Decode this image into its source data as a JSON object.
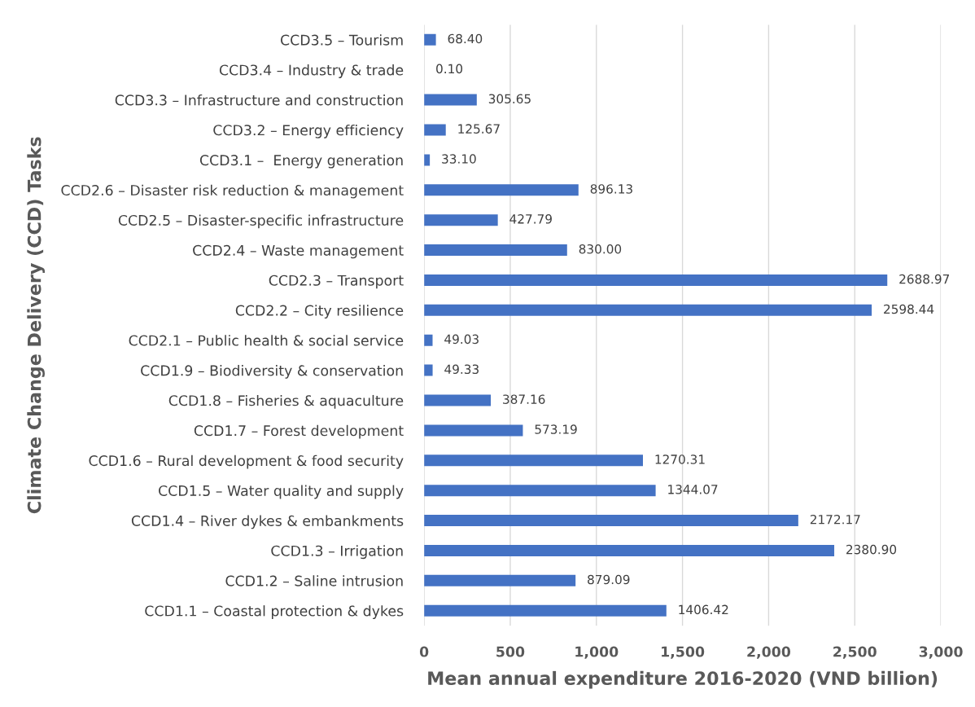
{
  "chart_data": {
    "type": "bar",
    "orientation": "horizontal",
    "xlabel": "Mean annual expenditure 2016-2020 (VND billion)",
    "ylabel": "Climate Change Delivery (CCD) Tasks",
    "categories": [
      "CCD3.5 – Tourism",
      "CCD3.4 – Industry & trade",
      "CCD3.3 – Infrastructure and construction",
      "CCD3.2 – Energy efficiency",
      "CCD3.1 –  Energy generation",
      "CCD2.6 – Disaster risk reduction & management",
      "CCD2.5 – Disaster-specific infrastructure",
      "CCD2.4 – Waste management",
      "CCD2.3 – Transport",
      "CCD2.2 – City resilience",
      "CCD2.1 – Public health & social service",
      "CCD1.9 – Biodiversity & conservation",
      "CCD1.8 – Fisheries & aquaculture",
      "CCD1.7 – Forest development",
      "CCD1.6 – Rural development & food security",
      "CCD1.5 – Water quality and supply",
      "CCD1.4 – River dykes & embankments",
      "CCD1.3 – Irrigation",
      "CCD1.2 – Saline intrusion",
      "CCD1.1 – Coastal protection & dykes"
    ],
    "values": [
      68.4,
      0.1,
      305.65,
      125.67,
      33.1,
      896.13,
      427.79,
      830.0,
      2688.97,
      2598.44,
      49.03,
      49.33,
      387.16,
      573.19,
      1270.31,
      1344.07,
      2172.17,
      2380.9,
      879.09,
      1406.42
    ],
    "value_labels": [
      "68.40",
      "0.10",
      "305.65",
      "125.67",
      "33.10",
      "896.13",
      "427.79",
      "830.00",
      "2688.97",
      "2598.44",
      "49.03",
      "49.33",
      "387.16",
      "573.19",
      "1270.31",
      "1344.07",
      "2172.17",
      "2380.90",
      "879.09",
      "1406.42"
    ],
    "color": "#4472c4",
    "xlim": [
      0,
      3000
    ],
    "xticks": [
      {
        "value": 0,
        "label": "0"
      },
      {
        "value": 500,
        "label": "500"
      },
      {
        "value": 1000,
        "label": "1,000"
      },
      {
        "value": 1500,
        "label": "1,500"
      },
      {
        "value": 2000,
        "label": "2,000"
      },
      {
        "value": 2500,
        "label": "2,500"
      },
      {
        "value": 3000,
        "label": "3,000"
      }
    ],
    "grid": "x",
    "legend": false
  }
}
